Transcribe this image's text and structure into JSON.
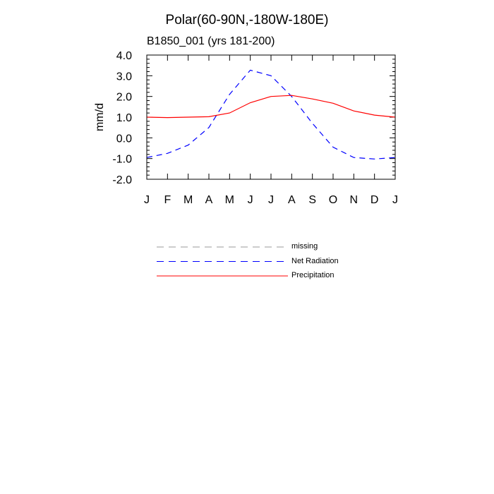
{
  "chart_data": {
    "type": "line",
    "title": "Polar(60-90N,-180W-180E)",
    "subtitle": "B1850_001 (yrs 181-200)",
    "xlabel": "",
    "ylabel": "mm/d",
    "categories": [
      "J",
      "F",
      "M",
      "A",
      "M",
      "J",
      "J",
      "A",
      "S",
      "O",
      "N",
      "D",
      "J"
    ],
    "ylim": [
      -2.0,
      4.0
    ],
    "yticks": [
      "-2.0",
      "-1.0",
      "0.0",
      "1.0",
      "2.0",
      "3.0",
      "4.0"
    ],
    "grid": false,
    "legend_position": "below",
    "series": [
      {
        "name": "Net Radiation",
        "color": "#0000ff",
        "style": "dashed",
        "values": [
          -0.95,
          -0.75,
          -0.35,
          0.5,
          2.1,
          3.27,
          3.0,
          2.0,
          0.7,
          -0.45,
          -0.95,
          -1.02,
          -0.95
        ]
      },
      {
        "name": "Precipitation",
        "color": "#ff0000",
        "style": "solid",
        "values": [
          1.0,
          0.98,
          1.0,
          1.02,
          1.2,
          1.7,
          2.0,
          2.05,
          1.88,
          1.67,
          1.3,
          1.1,
          1.0
        ]
      }
    ],
    "legend": [
      {
        "label": "missing",
        "color": "#999999",
        "style": "dashed"
      },
      {
        "label": "Net Radiation",
        "color": "#0000ff",
        "style": "dashed"
      },
      {
        "label": "Precipitation",
        "color": "#ff0000",
        "style": "solid"
      }
    ]
  }
}
